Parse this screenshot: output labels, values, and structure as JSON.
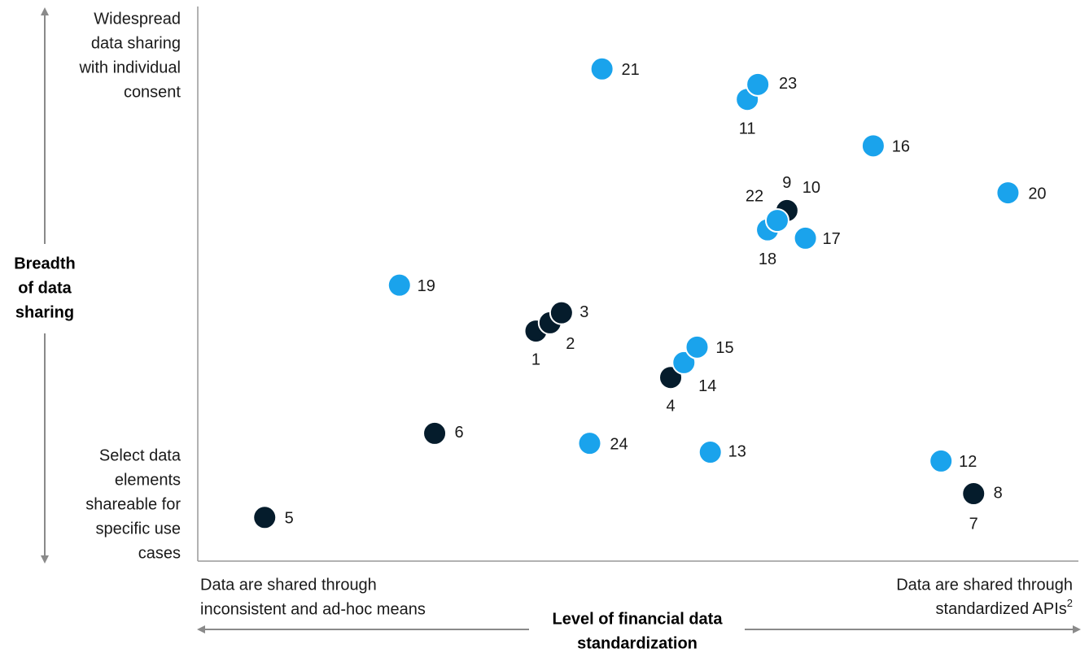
{
  "chart_data": {
    "type": "scatter",
    "xlim": [
      0,
      100
    ],
    "ylim": [
      0,
      100
    ],
    "y_label": [
      "Breadth",
      "of data",
      "sharing"
    ],
    "y_top_note": [
      "Widespread",
      "data sharing",
      "with individual",
      "consent"
    ],
    "y_bottom_note": [
      "Select data",
      "elements",
      "shareable for",
      "specific use",
      "cases"
    ],
    "x_label": [
      "Level of financial data",
      "standardization"
    ],
    "x_left_note": [
      "Data are shared through",
      "inconsistent and ad-hoc means"
    ],
    "x_right_note": [
      "Data are shared through",
      "standardized APIs"
    ],
    "x_right_note_footnote": "2",
    "series": [
      {
        "color": "#051c2c",
        "labels": [
          "1",
          "2",
          "3",
          "4",
          "5",
          "6",
          "7",
          "8",
          "9",
          "10"
        ],
        "x": [
          38.4,
          40.0,
          41.3,
          53.7,
          7.6,
          26.9,
          88.1,
          88.1,
          66.9,
          66.9
        ],
        "y": [
          41.6,
          43.1,
          44.9,
          33.2,
          7.9,
          23.1,
          12.2,
          12.2,
          63.4,
          63.4
        ]
      },
      {
        "color": "#1aa3ec",
        "labels": [
          "11",
          "12",
          "13",
          "14",
          "15",
          "16",
          "17",
          "18",
          "19",
          "20",
          "21",
          "22",
          "23",
          "24"
        ],
        "x": [
          62.4,
          84.4,
          58.2,
          55.2,
          56.7,
          76.7,
          69.0,
          64.7,
          22.9,
          92.0,
          45.9,
          65.8,
          63.6,
          44.5
        ],
        "y": [
          83.5,
          18.1,
          19.7,
          35.9,
          38.7,
          75.1,
          58.4,
          59.9,
          49.9,
          66.6,
          89.0,
          61.6,
          86.2,
          21.3
        ]
      }
    ]
  }
}
